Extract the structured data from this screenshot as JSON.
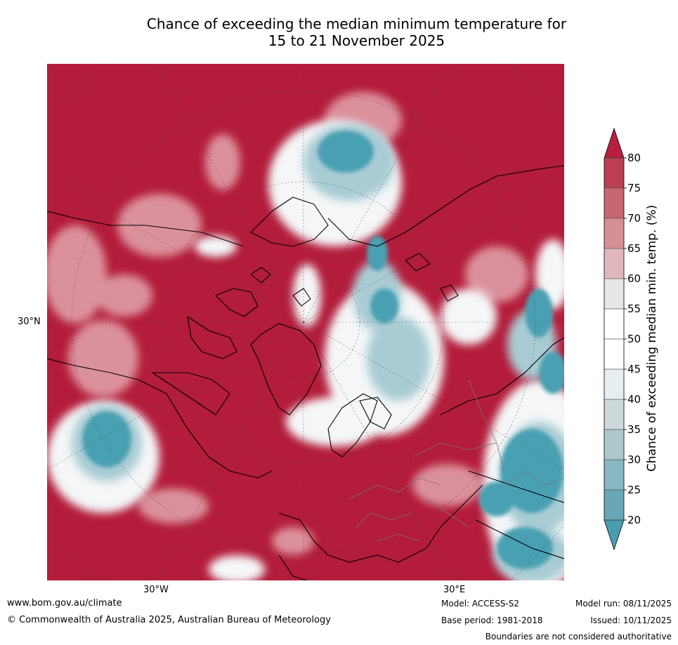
{
  "title_line1": "Chance of exceeding the median minimum temperature for",
  "title_line2": "15 to 21 November 2025",
  "map": {
    "lat_label": "30°N",
    "lon_labels": [
      "30°W",
      "30°E"
    ],
    "colors": {
      "ocean_red": "#b31c3a",
      "pale_red": "#e3a6ae",
      "white": "#f4f6f7",
      "teal": "#4aa0b3",
      "light_teal": "#a9ccd4"
    }
  },
  "colorbar": {
    "label": "Chance of exceeding median min. temp. (%)",
    "ticks": [
      "80",
      "75",
      "70",
      "65",
      "60",
      "55",
      "50",
      "45",
      "40",
      "35",
      "30",
      "25",
      "20"
    ],
    "colors": [
      "#b71f3d",
      "#bc3e52",
      "#c86772",
      "#d68f97",
      "#e2b7bb",
      "#e7e7e7",
      "#ffffff",
      "#ffffff",
      "#e7eef1",
      "#cdd8db",
      "#adc8cd",
      "#87b7c2",
      "#68a8b6",
      "#4a9db1"
    ]
  },
  "footer": {
    "url": "www.bom.gov.au/climate",
    "copyright": "© Commonwealth of Australia 2025, Australian Bureau of Meteorology",
    "model": "Model: ACCESS-S2",
    "base_period": "Base period: 1981-2018",
    "model_run": "Model run: 08/11/2025",
    "issued": "Issued: 10/11/2025",
    "disclaimer": "Boundaries are not considered authoritative"
  }
}
